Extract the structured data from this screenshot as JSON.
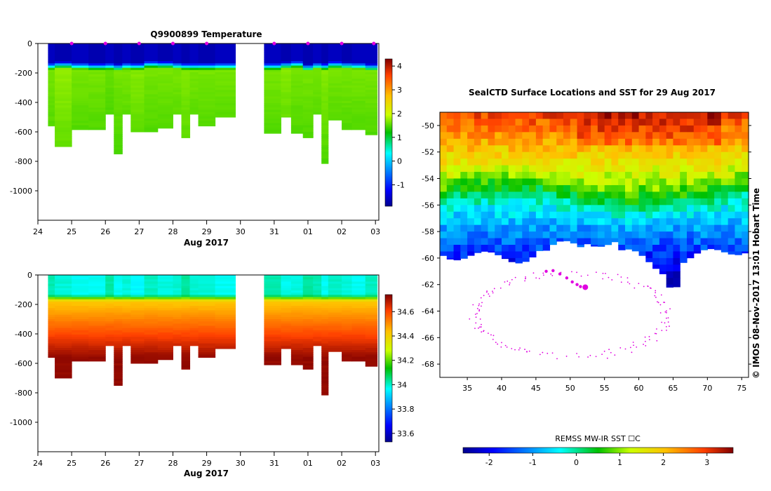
{
  "chart_data": [
    {
      "type": "heatmap",
      "panel": "temperature-profiles",
      "title": "Q9900899  Temperature",
      "xlabel": "Aug 2017",
      "x_ticks": [
        "24",
        "25",
        "26",
        "27",
        "28",
        "29",
        "30",
        "31",
        "01",
        "02",
        "03"
      ],
      "y_ticks": [
        0,
        -200,
        -400,
        -600,
        -800,
        -1000
      ],
      "ylim": [
        -1200,
        0
      ],
      "xlim_days": [
        24,
        34.1
      ],
      "colorbar": {
        "ticks": [
          4,
          3,
          2,
          1,
          0,
          -1
        ],
        "range": [
          -1.9,
          4.3
        ]
      },
      "profiles": [
        {
          "t": 24.3,
          "w": 0.2,
          "depth": 560,
          "surface": -1.6,
          "deep": 1.5
        },
        {
          "t": 24.5,
          "w": 0.5,
          "depth": 700,
          "surface": -1.7,
          "deep": 1.6
        },
        {
          "t": 25.0,
          "w": 0.5,
          "depth": 585,
          "surface": -1.6,
          "deep": 1.5
        },
        {
          "t": 25.5,
          "w": 0.5,
          "depth": 585,
          "surface": -1.7,
          "deep": 1.5
        },
        {
          "t": 26.0,
          "w": 0.25,
          "depth": 480,
          "surface": -1.6,
          "deep": 1.45
        },
        {
          "t": 26.25,
          "w": 0.25,
          "depth": 750,
          "surface": -1.7,
          "deep": 1.5
        },
        {
          "t": 26.5,
          "w": 0.25,
          "depth": 480,
          "surface": -1.6,
          "deep": 1.5
        },
        {
          "t": 26.75,
          "w": 0.4,
          "depth": 600,
          "surface": -1.7,
          "deep": 1.55
        },
        {
          "t": 27.15,
          "w": 0.4,
          "depth": 600,
          "surface": -1.6,
          "deep": 1.5
        },
        {
          "t": 27.55,
          "w": 0.45,
          "depth": 575,
          "surface": -1.7,
          "deep": 1.5
        },
        {
          "t": 28.0,
          "w": 0.25,
          "depth": 480,
          "surface": -1.6,
          "deep": 1.5
        },
        {
          "t": 28.25,
          "w": 0.25,
          "depth": 640,
          "surface": -1.7,
          "deep": 1.55
        },
        {
          "t": 28.5,
          "w": 0.25,
          "depth": 480,
          "surface": -1.6,
          "deep": 1.5
        },
        {
          "t": 28.75,
          "w": 0.5,
          "depth": 560,
          "surface": -1.7,
          "deep": 1.5
        },
        {
          "t": 29.25,
          "w": 0.6,
          "depth": 500,
          "surface": -1.6,
          "deep": 1.5
        },
        {
          "t": 30.7,
          "w": 0.5,
          "depth": 610,
          "surface": -1.6,
          "deep": 1.5
        },
        {
          "t": 31.2,
          "w": 0.3,
          "depth": 500,
          "surface": -1.7,
          "deep": 1.55
        },
        {
          "t": 31.5,
          "w": 0.35,
          "depth": 610,
          "surface": -1.6,
          "deep": 1.5
        },
        {
          "t": 31.85,
          "w": 0.3,
          "depth": 640,
          "surface": -1.7,
          "deep": 1.5
        },
        {
          "t": 32.15,
          "w": 0.25,
          "depth": 480,
          "surface": -1.6,
          "deep": 1.5
        },
        {
          "t": 32.4,
          "w": 0.2,
          "depth": 815,
          "surface": -1.7,
          "deep": 1.55
        },
        {
          "t": 32.6,
          "w": 0.4,
          "depth": 520,
          "surface": -1.6,
          "deep": 1.5
        },
        {
          "t": 33.0,
          "w": 0.3,
          "depth": 585,
          "surface": -1.7,
          "deep": 1.5
        },
        {
          "t": 33.3,
          "w": 0.4,
          "depth": 585,
          "surface": -1.6,
          "deep": 1.5
        },
        {
          "t": 33.7,
          "w": 0.35,
          "depth": 620,
          "surface": -1.6,
          "deep": 1.5
        }
      ],
      "markers": [
        25,
        26,
        27,
        28,
        29,
        31,
        32,
        33,
        34
      ]
    },
    {
      "type": "heatmap",
      "panel": "salinity-profiles",
      "title": "",
      "xlabel": "Aug 2017",
      "x_ticks": [
        "24",
        "25",
        "26",
        "27",
        "28",
        "29",
        "30",
        "31",
        "01",
        "02",
        "03"
      ],
      "y_ticks": [
        0,
        -200,
        -400,
        -600,
        -800,
        -1000
      ],
      "ylim": [
        -1200,
        0
      ],
      "colorbar": {
        "ticks": [
          34.6,
          34.4,
          34.2,
          34,
          33.8,
          33.6
        ],
        "range": [
          33.53,
          34.74
        ]
      },
      "surface_salinity": 34.0,
      "deep_salinity": 34.72
    },
    {
      "type": "heatmap",
      "panel": "sst-map",
      "title": "SealCTD Surface Locations and SST for 29 Aug 2017",
      "xlim": [
        31,
        76
      ],
      "ylim": [
        -69,
        -49
      ],
      "x_ticks": [
        35,
        40,
        45,
        50,
        55,
        60,
        65,
        70,
        75
      ],
      "y_ticks": [
        -50,
        -52,
        -54,
        -56,
        -58,
        -60,
        -62,
        -64,
        -66,
        -68
      ],
      "colorbar": {
        "label": "REMSS MW-IR SST ☐C",
        "ticks": [
          -2,
          -1,
          0,
          1,
          2,
          3
        ],
        "range": [
          -2.6,
          3.6
        ]
      },
      "track_positions": [
        [
          46.5,
          -61.0
        ],
        [
          47.5,
          -60.95
        ],
        [
          48.5,
          -61.2
        ],
        [
          49.5,
          -61.5
        ],
        [
          50.3,
          -61.8
        ],
        [
          51.0,
          -62.0
        ],
        [
          51.5,
          -62.15
        ]
      ],
      "last_position": [
        52.2,
        -62.2
      ],
      "credit": "©  IMOS 08-Nov-2017 13:01 Hobart Time"
    }
  ]
}
